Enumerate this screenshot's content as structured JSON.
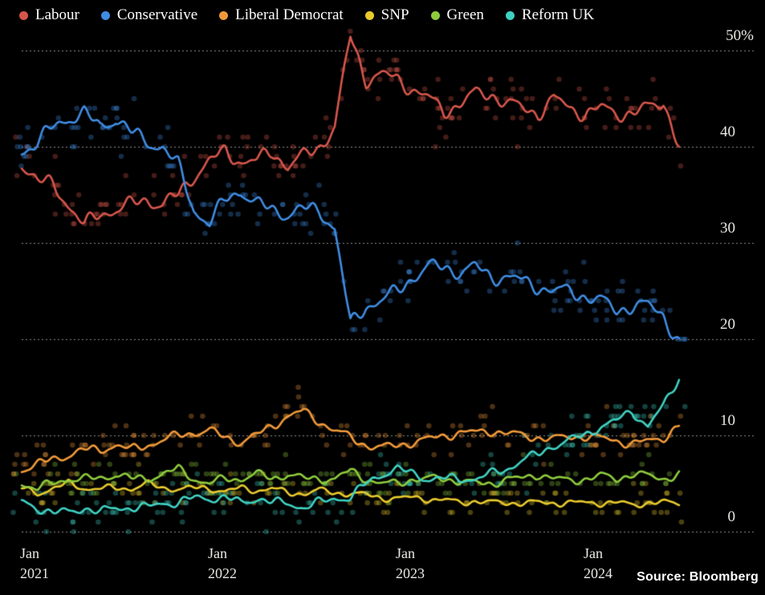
{
  "source_label": "Source: Bloomberg",
  "legend": {
    "position": "top-left",
    "items": [
      {
        "label": "Labour",
        "color": "#d6564b"
      },
      {
        "label": "Conservative",
        "color": "#3f8ce2"
      },
      {
        "label": "Liberal Democrat",
        "color": "#f0993a"
      },
      {
        "label": "SNP",
        "color": "#e8c92e"
      },
      {
        "label": "Green",
        "color": "#8ecb3d"
      },
      {
        "label": "Reform UK",
        "color": "#3fd1c2"
      }
    ]
  },
  "chart_data": {
    "type": "line",
    "subtype": "poll-average-lines-with-individual-poll-scatter",
    "x_start": "2021-01",
    "x_unit": "month",
    "x_months_total": 43,
    "x_tick_positions_months": [
      0,
      12,
      24,
      36
    ],
    "x_tick_labels": [
      [
        "Jan",
        "2021"
      ],
      [
        "Jan",
        "2022"
      ],
      [
        "Jan",
        "2023"
      ],
      [
        "Jan",
        "2024"
      ]
    ],
    "y_ticks": [
      {
        "label": "50%",
        "value": 50
      },
      {
        "label": "40",
        "value": 40
      },
      {
        "label": "30",
        "value": 30
      },
      {
        "label": "20",
        "value": 20
      },
      {
        "label": "10",
        "value": 10
      },
      {
        "label": "0",
        "value": 0
      }
    ],
    "ylim": [
      0,
      53
    ],
    "grid": "dotted-horizontal",
    "grid_color": "#9a9a9a",
    "axis_text_color": "#e9e9e4",
    "background_color": "#000000",
    "legend_position": "top",
    "series": [
      {
        "name": "Labour",
        "color": "#d6564b",
        "values": [
          38.3,
          36.5,
          36,
          34,
          31.8,
          33,
          33.5,
          34,
          34.5,
          34,
          35,
          37,
          38.5,
          39.5,
          38.5,
          38.5,
          39.5,
          38,
          39,
          40,
          42,
          51.5,
          47,
          47.5,
          47,
          46,
          45,
          43.7,
          44.5,
          45.5,
          45.5,
          44.5,
          44,
          43.5,
          45,
          44,
          43.5,
          44,
          43.5,
          43.5,
          44,
          44.8,
          40
        ]
      },
      {
        "name": "Conservative",
        "color": "#3f8ce2",
        "values": [
          39.5,
          40.5,
          42,
          43,
          43.5,
          42,
          43,
          41.5,
          40.5,
          40,
          38,
          33.5,
          32,
          34.5,
          35.5,
          34,
          33.5,
          33,
          33.5,
          33.5,
          31.5,
          21.5,
          23.5,
          24,
          25,
          26.5,
          27.5,
          27.5,
          27,
          27.5,
          26.5,
          26.5,
          26,
          25.5,
          25,
          25,
          24.5,
          24,
          23,
          23.5,
          23.5,
          22.5,
          19.7
        ]
      },
      {
        "name": "Liberal Democrat",
        "color": "#f0993a",
        "values": [
          6.5,
          7,
          7.5,
          8,
          8.5,
          8.5,
          9,
          8.5,
          9,
          9.5,
          10,
          10.3,
          10.5,
          9.8,
          9.3,
          10,
          11,
          12,
          12.5,
          11.5,
          10.5,
          9.8,
          9,
          8.7,
          9,
          9.3,
          9.6,
          10,
          10.3,
          10.3,
          10.5,
          10.2,
          10,
          9.8,
          9.6,
          9.9,
          9.9,
          9.7,
          9.5,
          9.1,
          9.4,
          9.8,
          11
        ]
      },
      {
        "name": "SNP",
        "color": "#e8c92e",
        "values": [
          4.5,
          4,
          4.5,
          5,
          4.5,
          4.5,
          4.5,
          4.5,
          5,
          4.5,
          4.5,
          4.5,
          4.5,
          4.2,
          4.5,
          4.3,
          4.5,
          4,
          4,
          4.3,
          4,
          4,
          3.8,
          3.5,
          3.5,
          3.5,
          3.4,
          3.3,
          3,
          3.2,
          3,
          3,
          3,
          3,
          3,
          3,
          3,
          3,
          3,
          2.8,
          3,
          3,
          3
        ]
      },
      {
        "name": "Green",
        "color": "#8ecb3d",
        "values": [
          5,
          4.5,
          5,
          5.5,
          5.5,
          5.5,
          6,
          5.5,
          5.5,
          6,
          6.5,
          5.5,
          5,
          5.5,
          5.5,
          6,
          5.5,
          6,
          5.5,
          5.5,
          5.5,
          6.3,
          5.5,
          5,
          5,
          5.5,
          5.5,
          5.5,
          5.3,
          5,
          5,
          5.5,
          5.5,
          6,
          5.5,
          5.3,
          5.5,
          5.8,
          5.5,
          6,
          5.8,
          5.5,
          6
        ]
      },
      {
        "name": "Reform UK",
        "color": "#3fd1c2",
        "values": [
          3,
          2.5,
          2,
          2,
          2.5,
          2,
          2.5,
          2.5,
          2.5,
          3,
          3,
          3.5,
          3.5,
          3.5,
          3,
          3.5,
          3,
          3,
          2.5,
          3,
          3.5,
          3.5,
          5,
          6,
          6.5,
          6,
          5.5,
          5.5,
          5.5,
          5.5,
          6,
          6.5,
          7.5,
          8,
          9,
          9.5,
          10,
          11,
          11.5,
          12.5,
          11,
          13,
          16
        ]
      }
    ],
    "scatter": {
      "description": "individual poll results shown as faded dots around each party's trend line, values snapped to whole percents",
      "seed": 11,
      "noise_seed": 5,
      "per_series_count": [
        175,
        175,
        150,
        120,
        140,
        150
      ],
      "jitter_sd": [
        1.3,
        1.3,
        1.1,
        0.9,
        1.0,
        1.1
      ],
      "dot_alpha": 0.32
    }
  }
}
